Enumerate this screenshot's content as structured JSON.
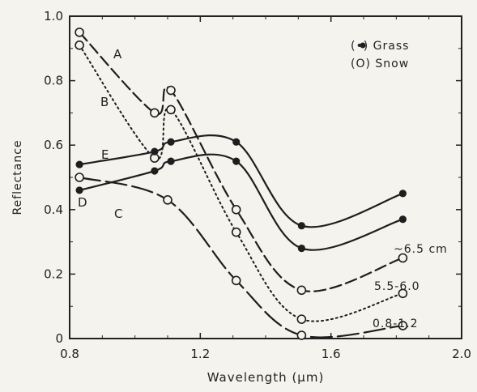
{
  "chart_data": {
    "type": "line",
    "title": "",
    "xlabel": "Wavelength (µm)",
    "ylabel": "Reflectance",
    "xlim": [
      0.8,
      2.0
    ],
    "ylim": [
      0,
      1.0
    ],
    "x_ticks": [
      0.8,
      1.2,
      1.6,
      2.0
    ],
    "x_tick_labels": [
      "0.8",
      "1.2",
      "1.6",
      "2.0"
    ],
    "y_ticks": [
      0,
      0.2,
      0.4,
      0.6,
      0.8,
      1.0
    ],
    "y_tick_labels": [
      "0",
      "0.2",
      "0.4",
      "0.6",
      "0.8",
      "1.0"
    ],
    "grid": false,
    "legend": {
      "placement": "top-right",
      "entries": [
        {
          "label": "(•) Grass",
          "marker": "filled"
        },
        {
          "label": "(O) Snow",
          "marker": "open"
        }
      ]
    },
    "series": [
      {
        "name": "A",
        "annotation": "~6.5 cm",
        "material": "Snow",
        "style": "dashed",
        "x": [
          0.83,
          1.06,
          1.11,
          1.31,
          1.51,
          1.82
        ],
        "y": [
          0.95,
          0.7,
          0.77,
          0.4,
          0.15,
          0.25
        ]
      },
      {
        "name": "B",
        "annotation": "5.5-6.0",
        "material": "Snow",
        "style": "dotted",
        "x": [
          0.83,
          1.06,
          1.11,
          1.31,
          1.51,
          1.82
        ],
        "y": [
          0.91,
          0.56,
          0.71,
          0.33,
          0.06,
          0.14
        ]
      },
      {
        "name": "C",
        "annotation": "0.8-1.2",
        "material": "Snow",
        "style": "long-dash",
        "x": [
          0.83,
          1.1,
          1.31,
          1.51,
          1.82
        ],
        "y": [
          0.5,
          0.43,
          0.18,
          0.01,
          0.04
        ]
      },
      {
        "name": "D",
        "annotation": "",
        "material": "Grass",
        "style": "solid",
        "x": [
          0.83,
          1.06,
          1.11,
          1.31,
          1.51,
          1.82
        ],
        "y": [
          0.46,
          0.52,
          0.55,
          0.55,
          0.28,
          0.37
        ]
      },
      {
        "name": "E",
        "annotation": "",
        "material": "Grass",
        "style": "solid",
        "x": [
          0.83,
          1.06,
          1.11,
          1.31,
          1.51,
          1.82
        ],
        "y": [
          0.54,
          0.58,
          0.61,
          0.61,
          0.35,
          0.45
        ]
      }
    ]
  }
}
